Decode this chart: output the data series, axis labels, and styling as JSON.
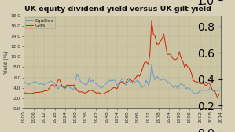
{
  "title": "UK equity dividend yield versus UK gilt yield",
  "ylabel": "Yield (%)",
  "bg_color": "#d8d1b8",
  "plot_bg_color": "#ccc5a4",
  "border_color": "#1a2a9c",
  "equities_color": "#6699cc",
  "gilts_color": "#cc2200",
  "ylim": [
    0.0,
    18.0
  ],
  "yticks": [
    0.0,
    2.0,
    4.0,
    6.0,
    8.0,
    10.0,
    12.0,
    14.0,
    16.0,
    18.0
  ],
  "xticks": [
    1900,
    1906,
    1912,
    1918,
    1924,
    1930,
    1936,
    1942,
    1948,
    1954,
    1960,
    1966,
    1972,
    1978,
    1984,
    1990,
    1996,
    2002,
    2008,
    2014
  ],
  "years": [
    1900,
    1901,
    1902,
    1903,
    1904,
    1905,
    1906,
    1907,
    1908,
    1909,
    1910,
    1911,
    1912,
    1913,
    1914,
    1915,
    1916,
    1917,
    1918,
    1919,
    1920,
    1921,
    1922,
    1923,
    1924,
    1925,
    1926,
    1927,
    1928,
    1929,
    1930,
    1931,
    1932,
    1933,
    1934,
    1935,
    1936,
    1937,
    1938,
    1939,
    1940,
    1941,
    1942,
    1943,
    1944,
    1945,
    1946,
    1947,
    1948,
    1949,
    1950,
    1951,
    1952,
    1953,
    1954,
    1955,
    1956,
    1957,
    1958,
    1959,
    1960,
    1961,
    1962,
    1963,
    1964,
    1965,
    1966,
    1967,
    1968,
    1969,
    1970,
    1971,
    1972,
    1973,
    1974,
    1975,
    1976,
    1977,
    1978,
    1979,
    1980,
    1981,
    1982,
    1983,
    1984,
    1985,
    1986,
    1987,
    1988,
    1989,
    1990,
    1991,
    1992,
    1993,
    1994,
    1995,
    1996,
    1997,
    1998,
    1999,
    2000,
    2001,
    2002,
    2003,
    2004,
    2005,
    2006,
    2007,
    2008,
    2009,
    2010,
    2011,
    2012,
    2013,
    2014
  ],
  "equities": [
    5.2,
    5.0,
    4.8,
    4.6,
    4.8,
    5.0,
    5.1,
    5.2,
    4.9,
    4.7,
    4.8,
    4.7,
    4.6,
    4.8,
    5.0,
    5.2,
    5.3,
    5.1,
    4.8,
    4.2,
    3.8,
    4.5,
    4.2,
    4.0,
    3.8,
    4.2,
    4.5,
    4.0,
    3.8,
    3.7,
    5.5,
    6.7,
    5.9,
    5.2,
    5.0,
    4.8,
    4.5,
    4.8,
    6.0,
    5.2,
    5.5,
    5.0,
    4.8,
    4.5,
    4.2,
    4.0,
    4.2,
    4.5,
    5.0,
    5.2,
    5.5,
    5.3,
    5.5,
    5.4,
    4.5,
    4.8,
    5.2,
    5.8,
    5.0,
    4.5,
    5.0,
    5.5,
    5.2,
    4.8,
    5.0,
    5.2,
    5.5,
    5.0,
    4.0,
    4.2,
    4.5,
    5.5,
    4.5,
    5.2,
    8.5,
    6.5,
    5.5,
    6.2,
    5.8,
    5.5,
    5.5,
    5.8,
    5.5,
    5.2,
    5.0,
    4.8,
    4.2,
    4.0,
    4.5,
    3.8,
    4.5,
    4.8,
    4.5,
    4.5,
    3.8,
    4.0,
    3.8,
    3.5,
    3.2,
    2.8,
    3.0,
    3.0,
    3.5,
    3.5,
    3.5,
    3.5,
    3.5,
    3.5,
    4.5,
    3.5,
    3.2,
    3.5,
    3.5,
    3.5,
    3.5
  ],
  "gilts": [
    3.0,
    3.0,
    2.9,
    2.9,
    2.9,
    2.9,
    3.0,
    3.1,
    3.1,
    3.1,
    3.2,
    3.2,
    3.4,
    3.4,
    3.5,
    4.0,
    4.5,
    4.6,
    4.2,
    4.5,
    5.5,
    5.5,
    4.5,
    4.2,
    4.0,
    4.5,
    4.5,
    4.5,
    4.5,
    4.5,
    4.0,
    3.5,
    3.2,
    3.2,
    3.2,
    3.0,
    3.0,
    3.2,
    3.5,
    3.5,
    3.4,
    3.2,
    3.0,
    3.0,
    3.0,
    2.8,
    2.8,
    3.0,
    3.2,
    3.2,
    3.5,
    3.8,
    4.0,
    4.0,
    3.8,
    4.5,
    5.0,
    5.2,
    4.8,
    5.0,
    5.5,
    5.8,
    5.5,
    5.2,
    5.5,
    6.0,
    6.5,
    6.2,
    7.0,
    8.0,
    9.0,
    9.0,
    8.5,
    10.5,
    17.0,
    14.5,
    14.0,
    12.5,
    12.5,
    13.0,
    13.5,
    14.5,
    12.5,
    10.5,
    10.5,
    10.5,
    9.8,
    9.5,
    9.5,
    9.8,
    11.0,
    9.8,
    9.2,
    8.0,
    8.5,
    8.0,
    7.8,
    6.8,
    5.5,
    5.2,
    5.2,
    5.0,
    4.8,
    4.8,
    4.8,
    4.5,
    4.5,
    5.0,
    4.5,
    3.6,
    3.5,
    3.0,
    2.0,
    2.8,
    2.8
  ]
}
